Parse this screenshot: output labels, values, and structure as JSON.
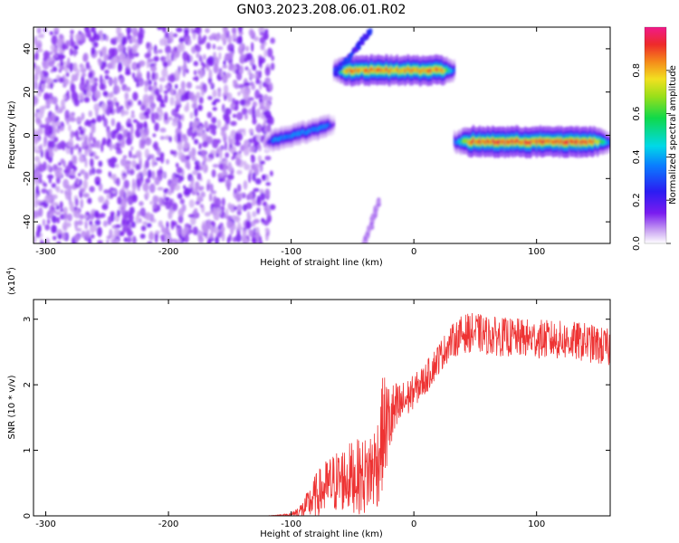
{
  "title": "GN03.2023.208.06.01.R02",
  "chart_data": [
    {
      "type": "heatmap",
      "xlabel": "Height of straight line (km)",
      "ylabel": "Frequency (Hz)",
      "xlim": [
        -310,
        160
      ],
      "ylim": [
        -50,
        50
      ],
      "xticks": [
        -300,
        -200,
        -100,
        0,
        100
      ],
      "yticks": [
        -40,
        -20,
        0,
        20,
        40
      ],
      "colorbar": {
        "label": "Normalized spectral amplitude",
        "range": [
          0,
          1
        ],
        "ticks": [
          "0.0",
          "0.2",
          "0.4",
          "0.6",
          "0.8"
        ],
        "tick_values": [
          0.0,
          0.2,
          0.4,
          0.6,
          0.8
        ],
        "colormap": "rainbow (white → purple → blue → cyan → green → yellow → red → magenta)"
      },
      "features": [
        {
          "kind": "noise",
          "x": [
            -310,
            -115
          ],
          "freq": [
            -50,
            50
          ],
          "amplitude": 0.1
        },
        {
          "kind": "band",
          "x": [
            -120,
            -65
          ],
          "freq_start": -3,
          "freq_end": 5,
          "amplitude_peak": 0.4
        },
        {
          "kind": "band",
          "x": [
            -65,
            33
          ],
          "freq_center": 30,
          "amplitude_peak": 0.9
        },
        {
          "kind": "streak",
          "x": [
            -65,
            -35
          ],
          "freq": [
            28,
            48
          ],
          "amplitude_peak": 0.3
        },
        {
          "kind": "streak",
          "x": [
            -40,
            -28
          ],
          "freq": [
            -50,
            -30
          ],
          "amplitude_peak": 0.1
        },
        {
          "kind": "band",
          "x": [
            33,
            160
          ],
          "freq_center": -3,
          "amplitude_peak": 0.95
        }
      ]
    },
    {
      "type": "line",
      "ylabel": "SNR (10 * v/v)",
      "yscale_label": "(x10",
      "yscale_exp": "4",
      "xlabel": "Height of straight line (km)",
      "xlim": [
        -310,
        160
      ],
      "ylim": [
        0,
        3.3
      ],
      "xticks": [
        -300,
        -200,
        -100,
        0,
        100
      ],
      "yticks": [
        0,
        1,
        2,
        3
      ],
      "color": "#ee3333",
      "series": [
        {
          "x": [
            -310,
            -120,
            -100,
            -90,
            -80,
            -70,
            -60,
            -50,
            -40,
            -30,
            -25,
            -20,
            -10,
            0,
            10,
            20,
            30,
            40,
            50,
            60,
            80,
            100,
            120,
            140,
            160
          ],
          "y": [
            0.0,
            0.0,
            0.02,
            0.1,
            0.3,
            0.45,
            0.55,
            0.6,
            0.6,
            0.8,
            1.3,
            1.45,
            1.7,
            1.9,
            2.1,
            2.4,
            2.65,
            2.78,
            2.8,
            2.75,
            2.72,
            2.7,
            2.68,
            2.65,
            2.55
          ],
          "noise": [
            0.0,
            0.0,
            0.02,
            0.15,
            0.35,
            0.45,
            0.5,
            0.55,
            0.6,
            0.7,
            0.9,
            0.6,
            0.35,
            0.25,
            0.25,
            0.25,
            0.25,
            0.3,
            0.3,
            0.3,
            0.3,
            0.3,
            0.3,
            0.3,
            0.3
          ]
        }
      ]
    }
  ]
}
